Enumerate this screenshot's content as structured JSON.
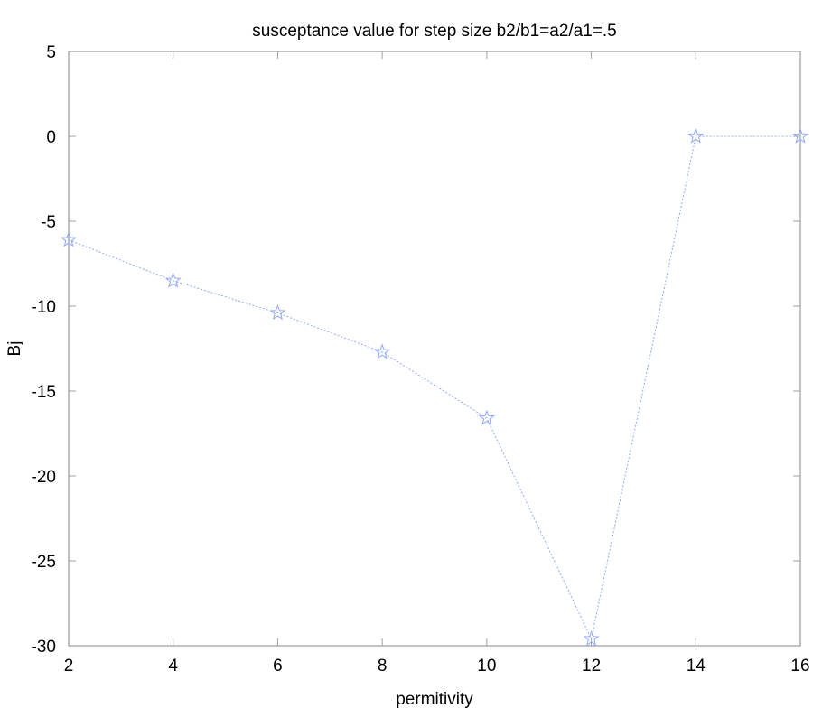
{
  "chart_data": {
    "type": "line",
    "title": "susceptance value for step size b2/b1=a2/a1=.5",
    "xlabel": "permitivity",
    "ylabel": "Bj",
    "xlim": [
      2,
      16
    ],
    "ylim": [
      -30,
      5
    ],
    "xticks": [
      2,
      4,
      6,
      8,
      10,
      12,
      14,
      16
    ],
    "yticks": [
      5,
      0,
      -5,
      -10,
      -15,
      -20,
      -25,
      -30
    ],
    "grid": false,
    "marker": "star",
    "line_style": "dotted",
    "series": [
      {
        "x": [
          2,
          4,
          6,
          8,
          10,
          12,
          14,
          16
        ],
        "y": [
          -6.1,
          -8.5,
          -10.4,
          -12.7,
          -16.6,
          -29.6,
          0,
          0
        ],
        "color": "#8fa8ff"
      }
    ],
    "axis_color": "#a0a0a0"
  }
}
